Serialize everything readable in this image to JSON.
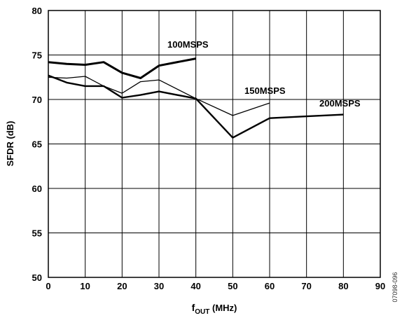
{
  "chart_data": {
    "type": "line",
    "xlabel_main": "f",
    "xlabel_sub": "OUT",
    "xlabel_unit": " (MHz)",
    "ylabel": "SFDR (dB)",
    "xlim": [
      0,
      90
    ],
    "ylim": [
      50,
      80
    ],
    "x_ticks": [
      0,
      10,
      20,
      30,
      40,
      50,
      60,
      70,
      80,
      90
    ],
    "y_ticks": [
      50,
      55,
      60,
      65,
      70,
      75,
      80
    ],
    "grid": true,
    "figure_code": "07098-096",
    "series": [
      {
        "name": "100MSPS",
        "x": [
          0,
          5,
          10,
          15,
          20,
          25,
          30,
          40
        ],
        "y": [
          74.2,
          74.0,
          73.9,
          74.2,
          73.0,
          72.4,
          73.8,
          74.6
        ]
      },
      {
        "name": "150MSPS",
        "x": [
          0,
          5,
          10,
          15,
          20,
          25,
          30,
          40,
          50,
          60
        ],
        "y": [
          72.5,
          72.4,
          72.6,
          71.5,
          70.7,
          72.0,
          72.2,
          70.1,
          68.2,
          69.6
        ]
      },
      {
        "name": "200MSPS",
        "x": [
          0,
          5,
          10,
          15,
          20,
          25,
          30,
          40,
          50,
          60,
          70,
          80
        ],
        "y": [
          72.7,
          71.9,
          71.5,
          71.5,
          70.2,
          70.5,
          70.9,
          70.1,
          65.7,
          67.9,
          68.1,
          68.3
        ]
      }
    ]
  }
}
